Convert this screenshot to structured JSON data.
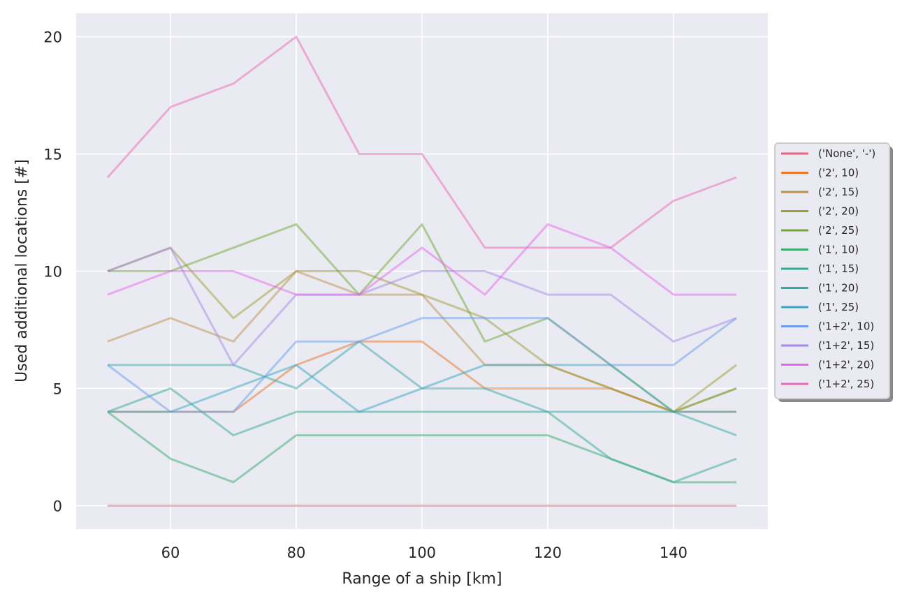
{
  "chart_data": {
    "type": "line",
    "title": "",
    "xlabel": "Range of a ship [km]",
    "ylabel": "Used additional locations [#]",
    "x": [
      50,
      60,
      70,
      80,
      90,
      100,
      110,
      120,
      130,
      140,
      150
    ],
    "xlim": [
      45,
      155
    ],
    "ylim": [
      -1,
      21
    ],
    "xticks": [
      60,
      80,
      100,
      120,
      140
    ],
    "yticks": [
      0,
      5,
      10,
      15,
      20
    ],
    "grid": true,
    "legend_position": "center-right outside",
    "series": [
      {
        "name": "('None', '-')",
        "color": "#e7677c",
        "values": [
          0,
          0,
          0,
          0,
          0,
          0,
          0,
          0,
          0,
          0,
          0
        ]
      },
      {
        "name": "('2', 10)",
        "color": "#e5792d",
        "values": [
          4,
          4,
          4,
          6,
          7,
          7,
          5,
          5,
          5,
          4,
          4
        ]
      },
      {
        "name": "('2', 15)",
        "color": "#bb914e",
        "values": [
          7,
          8,
          7,
          10,
          9,
          9,
          6,
          6,
          5,
          4,
          5
        ]
      },
      {
        "name": "('2', 20)",
        "color": "#a29c38",
        "values": [
          10,
          11,
          8,
          10,
          10,
          9,
          8,
          6,
          5,
          4,
          6
        ]
      },
      {
        "name": "('2', 25)",
        "color": "#74a838",
        "values": [
          10,
          10,
          11,
          12,
          9,
          12,
          7,
          8,
          6,
          4,
          5
        ]
      },
      {
        "name": "('1', 10)",
        "color": "#3aaa6f",
        "values": [
          4,
          2,
          1,
          3,
          3,
          3,
          3,
          3,
          2,
          1,
          1
        ]
      },
      {
        "name": "('1', 15)",
        "color": "#36ab93",
        "values": [
          4,
          5,
          3,
          4,
          4,
          4,
          4,
          4,
          2,
          1,
          2
        ]
      },
      {
        "name": "('1', 20)",
        "color": "#38a9a9",
        "values": [
          6,
          6,
          6,
          5,
          7,
          5,
          5,
          4,
          4,
          4,
          3
        ]
      },
      {
        "name": "('1', 25)",
        "color": "#3aa6c3",
        "values": [
          4,
          4,
          5,
          6,
          4,
          5,
          6,
          6,
          6,
          4,
          4
        ]
      },
      {
        "name": "('1+2', 10)",
        "color": "#6a9ded",
        "values": [
          6,
          4,
          4,
          7,
          7,
          8,
          8,
          8,
          6,
          6,
          8
        ]
      },
      {
        "name": "('1+2', 15)",
        "color": "#a68aeb",
        "values": [
          10,
          11,
          6,
          9,
          9,
          10,
          10,
          9,
          9,
          7,
          8
        ]
      },
      {
        "name": "('1+2', 20)",
        "color": "#e668ea",
        "values": [
          9,
          10,
          10,
          9,
          9,
          11,
          9,
          12,
          11,
          9,
          9
        ]
      },
      {
        "name": "('1+2', 25)",
        "color": "#ea69b6",
        "values": [
          14,
          17,
          18,
          20,
          15,
          15,
          11,
          11,
          11,
          13,
          14
        ]
      }
    ]
  }
}
